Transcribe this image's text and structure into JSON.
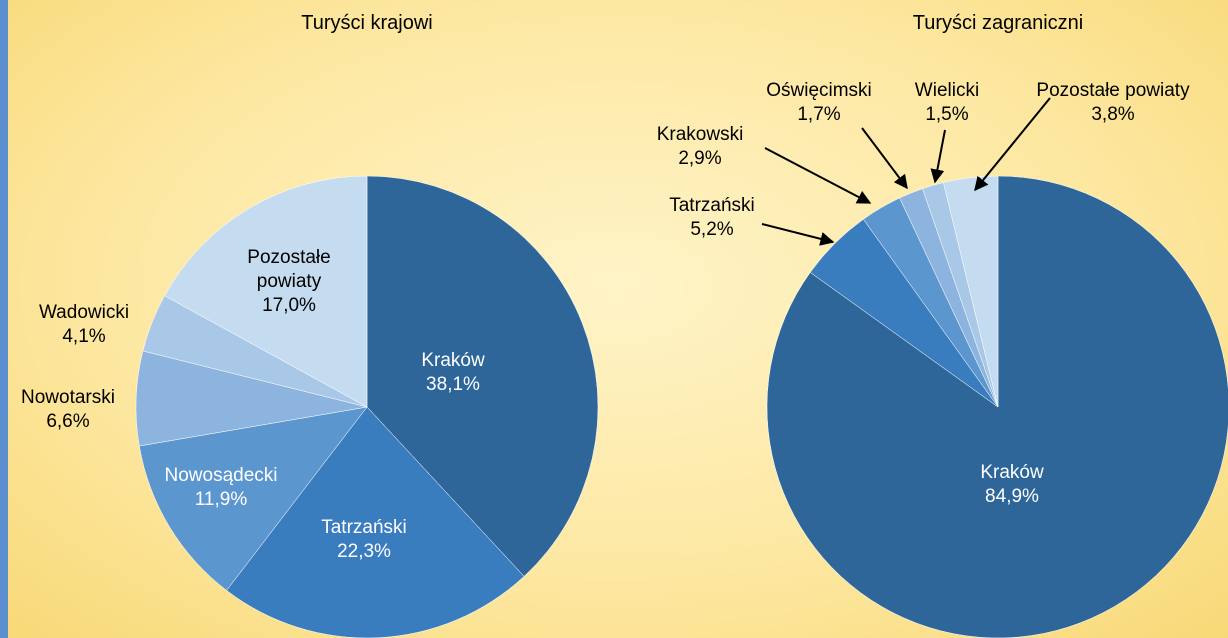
{
  "chart_data": [
    {
      "type": "pie",
      "title": "Turyści krajowi",
      "categories": [
        "Kraków",
        "Tatrzański",
        "Nowosądecki",
        "Nowotarski",
        "Wadowicki",
        "Pozostałe powiaty"
      ],
      "values": [
        38.1,
        22.3,
        11.9,
        6.6,
        4.1,
        17.0
      ],
      "value_labels": [
        "38,1%",
        "22,3%",
        "11,9%",
        "6,6%",
        "4,1%",
        "17,0%"
      ],
      "colors": [
        "#2e6699",
        "#3a7dbf",
        "#5b96cf",
        "#8cb4de",
        "#a9c8e8",
        "#c5dcf0"
      ]
    },
    {
      "type": "pie",
      "title": "Turyści zagraniczni",
      "categories": [
        "Kraków",
        "Tatrzański",
        "Krakowski",
        "Oświęcimski",
        "Wielicki",
        "Pozostałe powiaty"
      ],
      "values": [
        84.9,
        5.2,
        2.9,
        1.7,
        1.5,
        3.8
      ],
      "value_labels": [
        "84,9%",
        "5,2%",
        "2,9%",
        "1,7%",
        "1,5%",
        "3,8%"
      ],
      "colors": [
        "#2e6699",
        "#3a7dbf",
        "#5b96cf",
        "#8cb4de",
        "#a9c8e8",
        "#c5dcf0"
      ]
    }
  ]
}
